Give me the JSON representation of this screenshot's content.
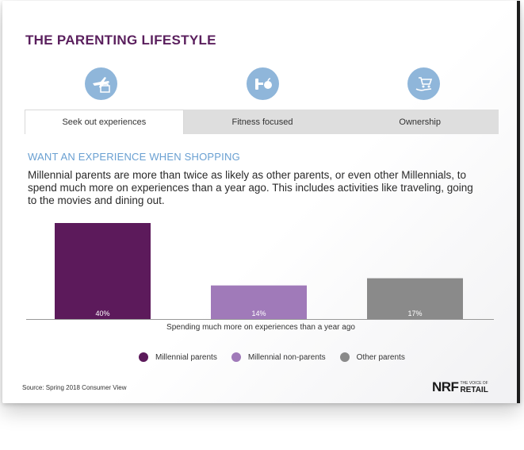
{
  "page": {
    "title": "THE PARENTING LIFESTYLE",
    "subheading": "WANT AN EXPERIENCE WHEN SHOPPING",
    "body": "Millennial parents are more than twice as likely as other parents, or even other Millennials, to spend much more on experiences than a year ago. This includes activities like traveling, going to the movies and dining out.",
    "source": "Source: Spring 2018 Consumer View"
  },
  "icons": [
    {
      "name": "travel-shopping-icon"
    },
    {
      "name": "fitness-icon"
    },
    {
      "name": "ownership-cart-icon"
    }
  ],
  "tabs": [
    {
      "label": "Seek out experiences",
      "active": true
    },
    {
      "label": "Fitness focused",
      "active": false
    },
    {
      "label": "Ownership",
      "active": false
    }
  ],
  "logo": {
    "main": "NRF",
    "tagline": "THE VOICE OF",
    "sub": "RETAIL"
  },
  "colors": {
    "title": "#5a1f5d",
    "subheading": "#6aa0d2",
    "icon_bg": "#8fb6da",
    "tab_bar": "#dedede"
  },
  "chart_data": {
    "type": "bar",
    "categories": [
      "Millennial parents",
      "Millennial non-parents",
      "Other parents"
    ],
    "values": [
      40,
      14,
      17
    ],
    "labels": [
      "40%",
      "14%",
      "17%"
    ],
    "colors": [
      "#5c1a5b",
      "#a07ab9",
      "#8a8a8a"
    ],
    "xlabel": "Spending much more on experiences than a year ago",
    "ylabel": "",
    "ylim": [
      0,
      40
    ],
    "legend": [
      "Millennial parents",
      "Millennial non-parents",
      "Other parents"
    ],
    "legend_position": "bottom",
    "grid": false
  }
}
